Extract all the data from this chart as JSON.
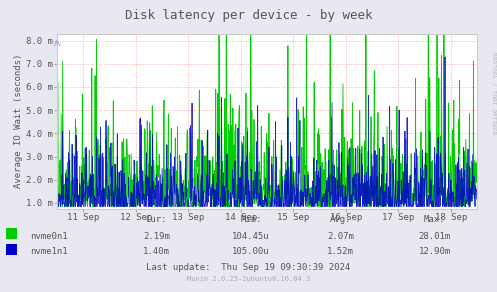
{
  "title": "Disk latency per device - by week",
  "ylabel": "Average IO Wait (seconds)",
  "background_color": "#e8e8f0",
  "plot_bg_color": "#ffffff",
  "grid_color_h": "#ffaaaa",
  "grid_color_v": "#ffaaaa",
  "ytick_labels": [
    "1.0 m",
    "2.0 m",
    "3.0 m",
    "4.0 m",
    "5.0 m",
    "6.0 m",
    "7.0 m",
    "8.0 m"
  ],
  "ytick_values": [
    1.0,
    2.0,
    3.0,
    4.0,
    5.0,
    6.0,
    7.0,
    8.0
  ],
  "ymin": 0.75,
  "ymax": 8.3,
  "xtick_labels": [
    "11 Sep",
    "12 Sep",
    "13 Sep",
    "14 Sep",
    "15 Sep",
    "16 Sep",
    "17 Sep",
    "18 Sep"
  ],
  "xtick_positions": [
    72,
    216,
    360,
    504,
    648,
    792,
    936,
    1080
  ],
  "xmin": 0,
  "xmax": 1152,
  "color_nvme0": "#00cc00",
  "color_nvme1": "#0000cc",
  "legend_nvme0": "nvme0n1",
  "legend_nvme1": "nvme1n1",
  "cur_nvme0": "2.19m",
  "cur_nvme1": "1.40m",
  "min_nvme0": "104.45u",
  "min_nvme1": "105.00u",
  "avg_nvme0": "2.07m",
  "avg_nvme1": "1.52m",
  "max_nvme0": "28.01m",
  "max_nvme1": "12.90m",
  "last_update": "Last update:  Thu Sep 19 09:30:39 2024",
  "munin_version": "Munin 2.0.25-2ubuntu0.16.04.3",
  "rrdtool_label": "RRDTOOL / TOBI OETIKER",
  "font_color": "#555555",
  "title_fontsize": 9,
  "axis_fontsize": 6.5,
  "legend_fontsize": 6.5,
  "stats_fontsize": 6.5
}
